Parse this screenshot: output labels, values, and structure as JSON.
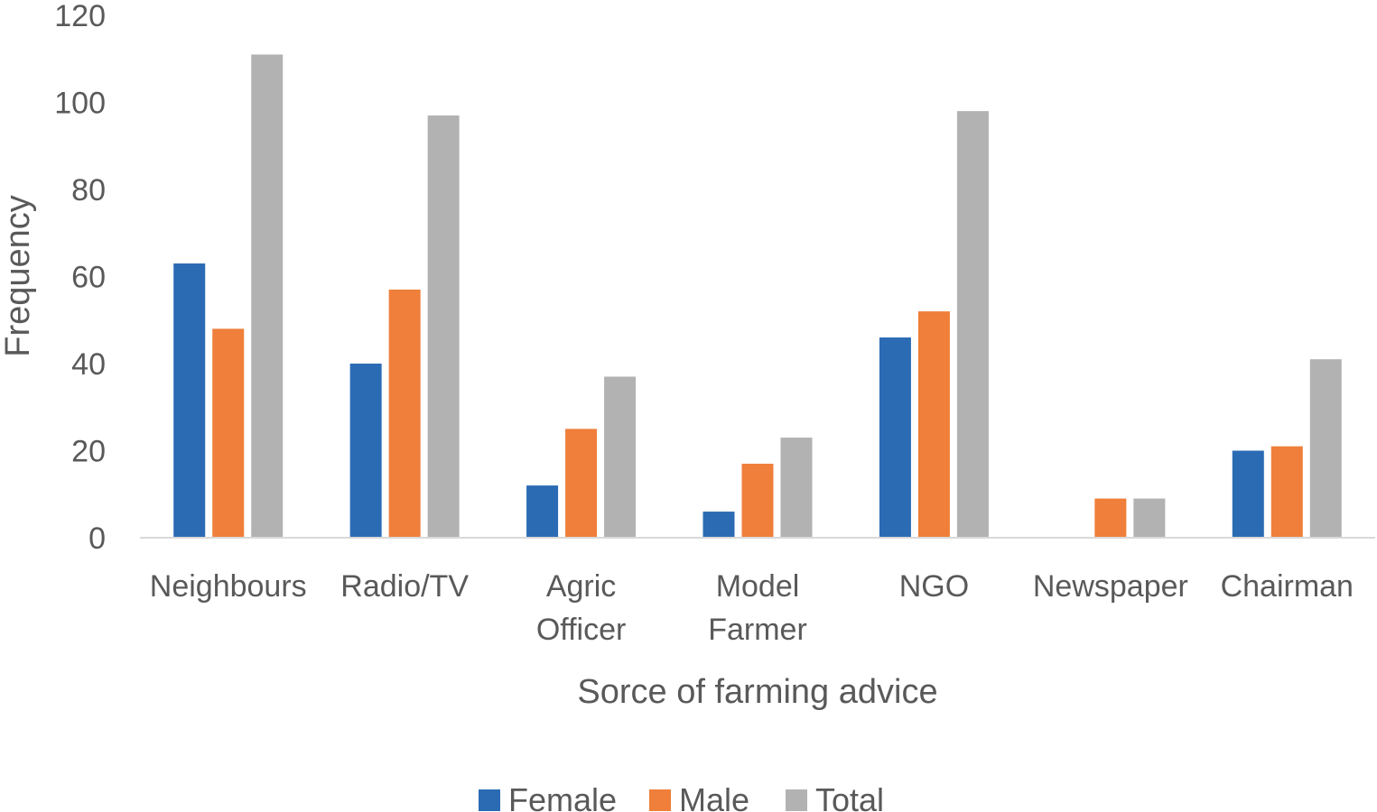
{
  "chart_data": {
    "type": "bar",
    "title": "",
    "xlabel": "Sorce of farming advice",
    "ylabel": "Frequency",
    "ylim": [
      0,
      120
    ],
    "yticks": [
      0,
      20,
      40,
      60,
      80,
      100,
      120
    ],
    "categories": [
      [
        "Neighbours"
      ],
      [
        "Radio/TV"
      ],
      [
        "Agric",
        "Officer"
      ],
      [
        "Model",
        "Farmer"
      ],
      [
        "NGO"
      ],
      [
        "Newspaper"
      ],
      [
        "Chairman"
      ]
    ],
    "series": [
      {
        "name": "Female",
        "color": "#2b6bb4",
        "values": [
          63,
          40,
          12,
          6,
          46,
          0,
          20
        ]
      },
      {
        "name": "Male",
        "color": "#ef7f3a",
        "values": [
          48,
          57,
          25,
          17,
          52,
          9,
          21
        ]
      },
      {
        "name": "Total",
        "color": "#b2b2b2",
        "values": [
          111,
          97,
          37,
          23,
          98,
          9,
          41
        ]
      }
    ],
    "grid": false,
    "legend_position": "bottom"
  }
}
